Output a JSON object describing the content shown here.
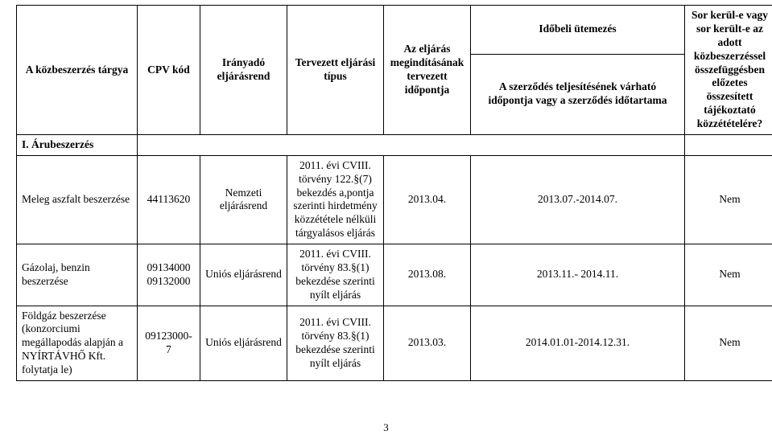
{
  "table": {
    "header": {
      "col0": "A közbeszerzés tárgya",
      "col1": "CPV kód",
      "col2": "Irányadó eljárásrend",
      "col3": "Tervezett eljárási típus",
      "col4": "Az eljárás megindításának tervezett időpontja",
      "col5_group": "Időbeli ütemezés",
      "col6": "A szerződés teljesítésének várható időpontja vagy a szerződés időtartama",
      "col7": "Sor kerül-e vagy sor került-e az adott közbeszerzéssel összefüggésben előzetes összesített tájékoztató közzétételére?"
    },
    "section": "I. Árubeszerzés",
    "rows": [
      {
        "c0": "Meleg aszfalt beszerzése",
        "c1": "44113620",
        "c2": "Nemzeti eljárásrend",
        "c3": "2011. évi CVIII. törvény 122.§(7) bekezdés a,pontja szerinti hirdetmény közzététele nélküli tárgyalásos eljárás",
        "c4": "2013.04.",
        "c6": "2013.07.-2014.07.",
        "c7": "Nem"
      },
      {
        "c0": "Gázolaj, benzin beszerzése",
        "c1": "09134000 09132000",
        "c2": "Uniós eljárásrend",
        "c3": "2011. évi CVIII. törvény 83.§(1) bekezdése szerinti nyílt eljárás",
        "c4": "2013.08.",
        "c6": "2013.11.- 2014.11.",
        "c7": "Nem"
      },
      {
        "c0": "Földgáz beszerzése (konzorciumi megállapodás alapján a NYÍRTÁVHŐ Kft. folytatja le)",
        "c1": "09123000-7",
        "c2": "Uniós eljárásrend",
        "c3": "2011. évi CVIII. törvény 83.§(1) bekezdése szerinti nyílt eljárás",
        "c4": "2013.03.",
        "c6": "2014.01.01-2014.12.31.",
        "c7": "Nem"
      }
    ]
  },
  "page_number": "3"
}
